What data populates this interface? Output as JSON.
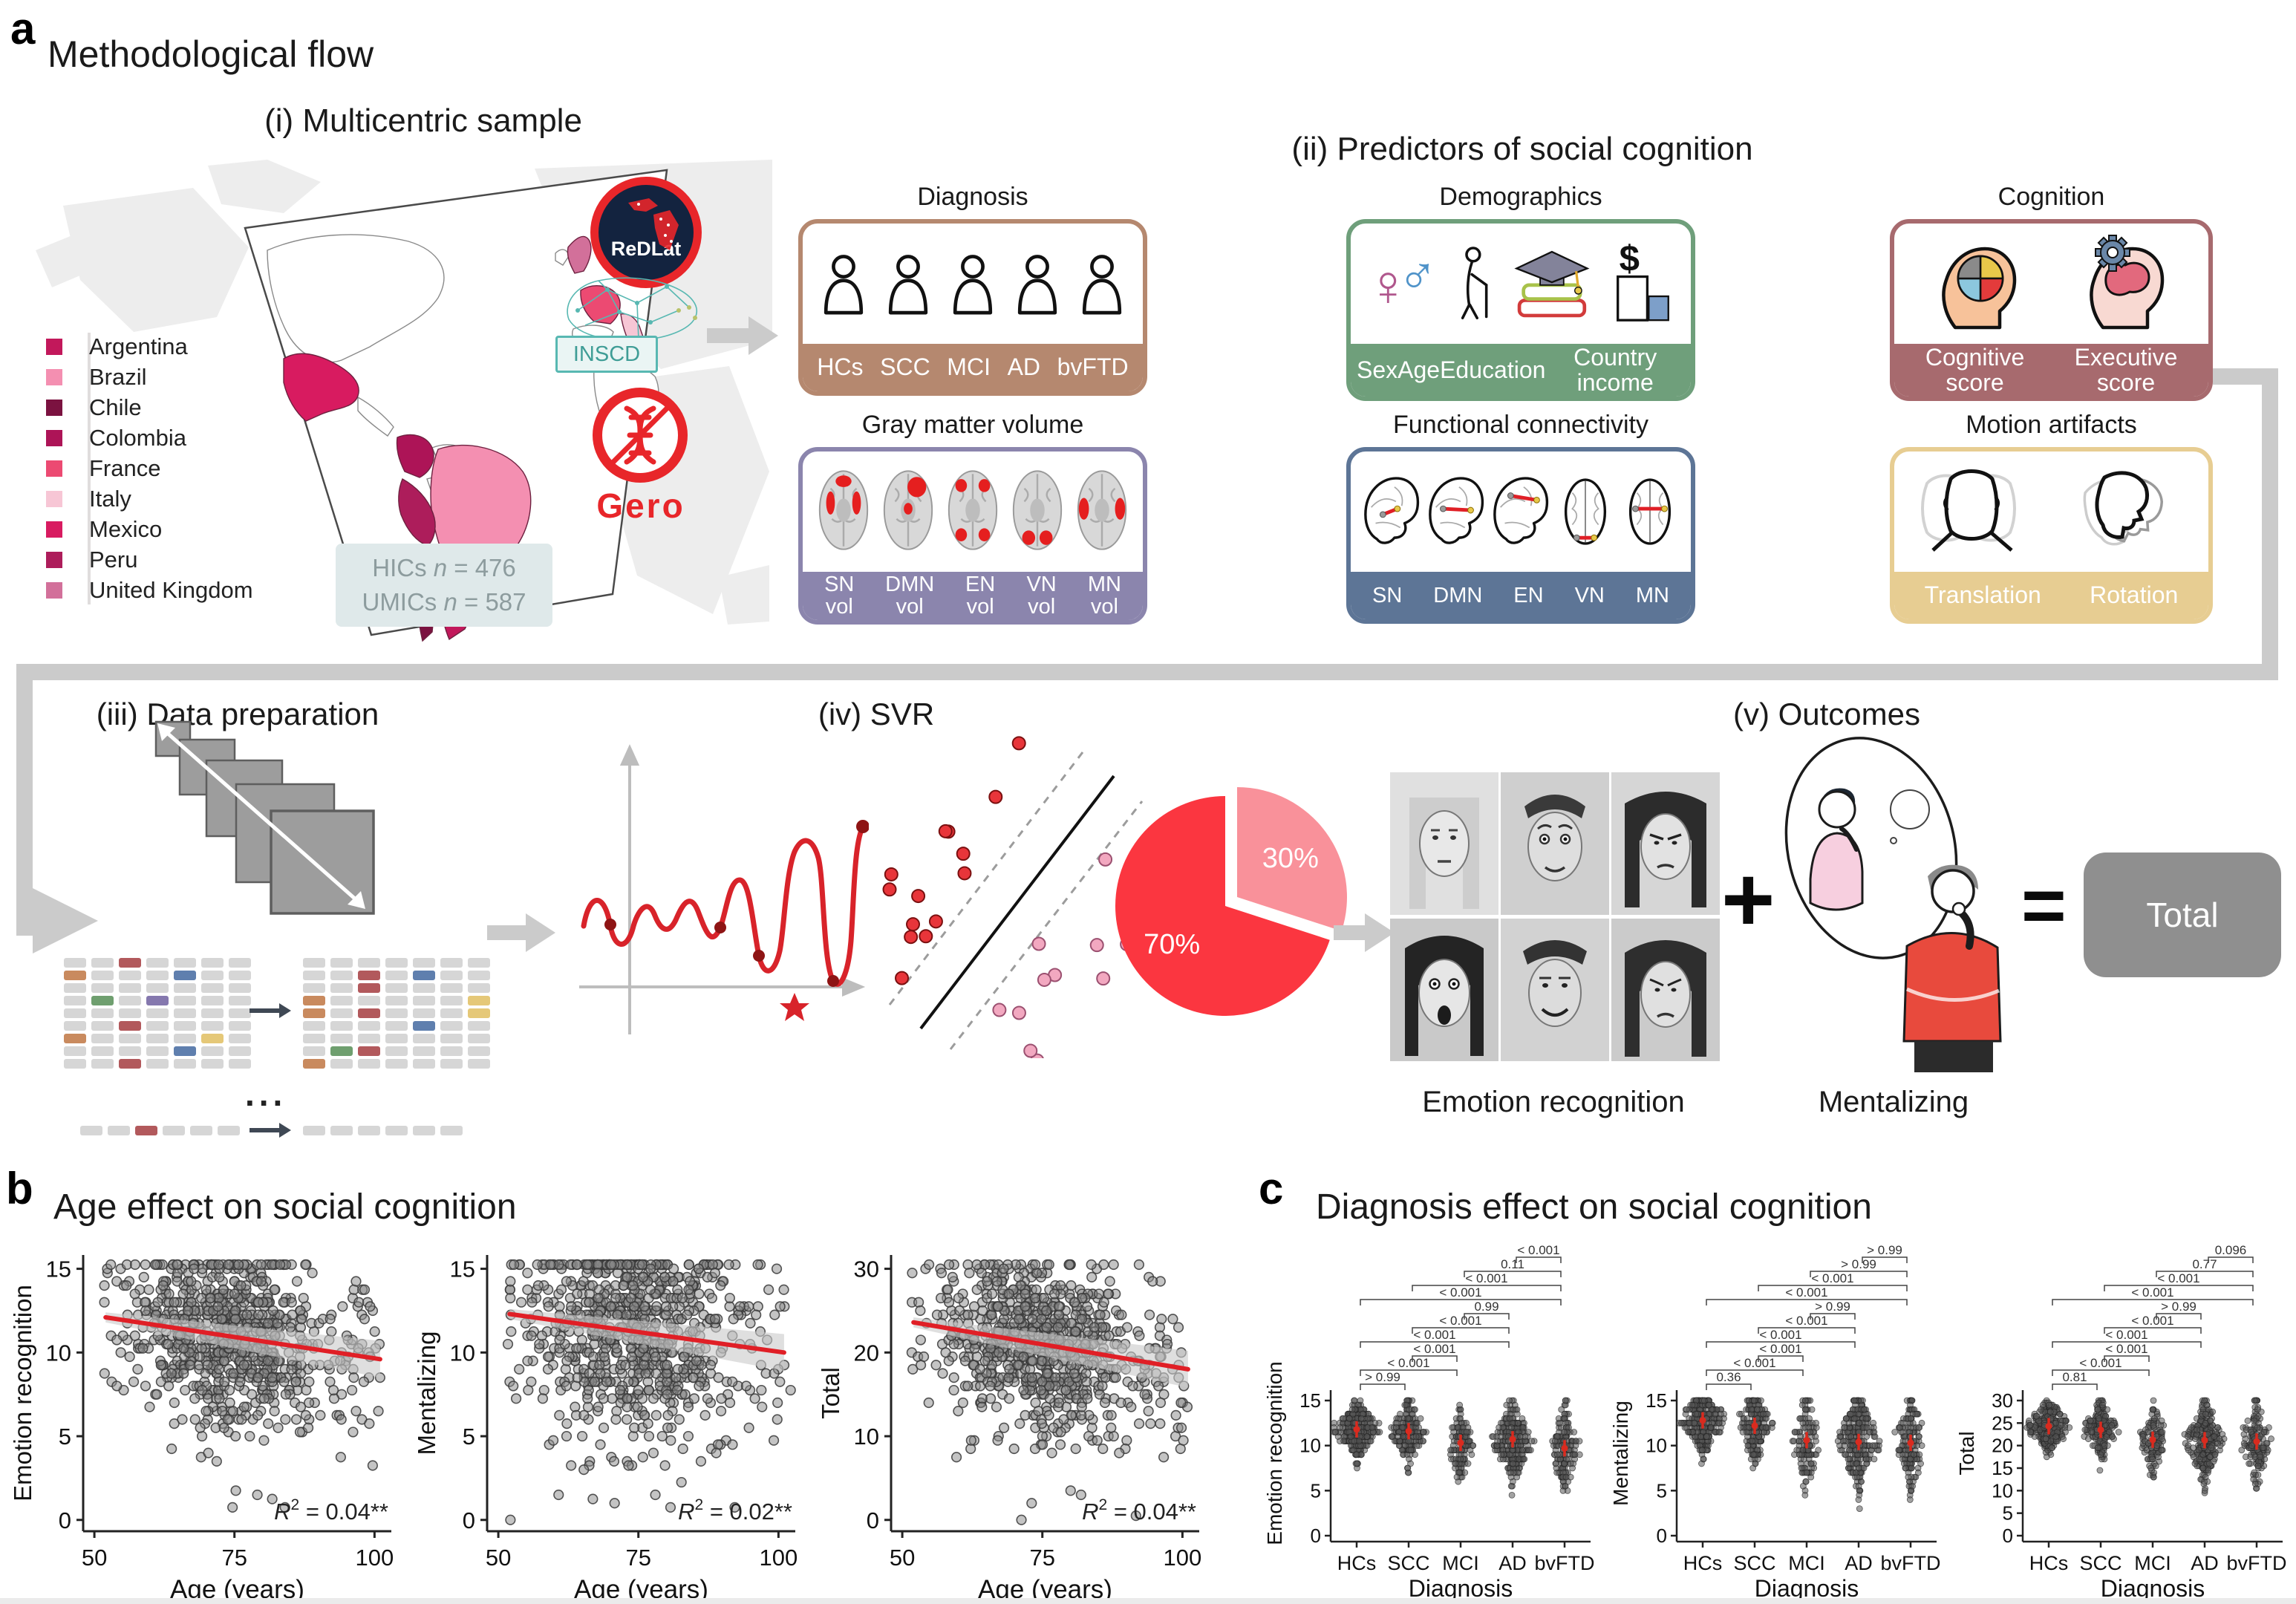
{
  "colors": {
    "flow_gray": "#cbcbcb",
    "accent_red": "#e8262a",
    "pie_main": "#fb3640",
    "pie_light": "#f9919a",
    "trend_red": "#e01f26",
    "mean_red": "#d92b1f",
    "point_gray": "#5c5c5c"
  },
  "panel_a": {
    "label": "a",
    "title": "Methodological flow",
    "section_i": {
      "title": "(i) Multicentric sample",
      "legend": [
        {
          "name": "Argentina",
          "color": "#c2185b"
        },
        {
          "name": "Brazil",
          "color": "#f48fb1"
        },
        {
          "name": "Chile",
          "color": "#7b1240"
        },
        {
          "name": "Colombia",
          "color": "#ad1457"
        },
        {
          "name": "France",
          "color": "#ec4a72"
        },
        {
          "name": "Italy",
          "color": "#f7c6d5"
        },
        {
          "name": "Mexico",
          "color": "#d81b60"
        },
        {
          "name": "Peru",
          "color": "#ad1d5b"
        },
        {
          "name": "United Kingdom",
          "color": "#d2709a"
        }
      ],
      "sample_box": {
        "hics_pre": "HICs ",
        "hics_n": "n",
        "hics_val": " = 476",
        "umics_pre": "UMICs ",
        "umics_n": "n",
        "umics_val": " = 587"
      },
      "logos": {
        "redlat": "ReDLat",
        "inscd": "INSCD",
        "gero": "Gero"
      }
    },
    "section_ii": {
      "title": "(ii) Predictors of social cognition",
      "cards": [
        {
          "title": "Diagnosis",
          "color": "#b5886f",
          "labels": [
            "HCs",
            "SCC",
            "MCI",
            "AD",
            "bvFTD"
          ]
        },
        {
          "title": "Demographics",
          "color": "#6f9f7b",
          "labels": [
            "Sex",
            "Age",
            "Education",
            "Country income"
          ]
        },
        {
          "title": "Cognition",
          "color": "#a76a6e",
          "labels": [
            "Cognitive score",
            "Executive score"
          ]
        },
        {
          "title": "Gray matter volume",
          "color": "#8b85ad",
          "labels": [
            "SN vol",
            "DMN vol",
            "EN vol",
            "VN vol",
            "MN vol"
          ]
        },
        {
          "title": "Functional connectivity",
          "color": "#5d7596",
          "labels": [
            "SN",
            "DMN",
            "EN",
            "VN",
            "MN"
          ]
        },
        {
          "title": "Motion artifacts",
          "color": "#e7cd92",
          "labels": [
            "Translation",
            "Rotation"
          ]
        }
      ]
    },
    "section_iii": {
      "title": "(iii) Data preparation",
      "ellipsis": "...",
      "grid_colors": {
        ".": "#d6d6d6",
        "r": "#b2595c",
        "o": "#c98a5e",
        "b": "#5f7fae",
        "g": "#6f9f6f",
        "p": "#8578ae",
        "y": "#e5c878"
      },
      "grid_left": [
        "..r....",
        "o...b..",
        ".......",
        ".g.p...",
        ".......",
        "..r....",
        "o....y.",
        "....b..",
        "..r...."
      ],
      "grid_right": [
        ".......",
        "..r.b..",
        "..r....",
        "o.....y",
        "o.r...y",
        "....b..",
        ".......",
        ".gr....",
        "o......"
      ],
      "row_left": "..r...",
      "row_right": "......"
    },
    "section_iv": {
      "title": "(iv) SVR",
      "pie": {
        "start_angle": -90,
        "slices": [
          {
            "label": "30%",
            "value": 30,
            "color": "#f9919a",
            "exploded": true
          },
          {
            "label": "70%",
            "value": 70,
            "color": "#fb3640",
            "exploded": false
          }
        ]
      }
    },
    "section_v": {
      "title": "(v) Outcomes",
      "emotion_label": "Emotion recognition",
      "plus": "+",
      "mentalizing_label": "Mentalizing",
      "equals": "=",
      "total_label": "Total"
    }
  },
  "panel_b": {
    "label": "b",
    "title": "Age effect on social cognition",
    "xlabel": "Age (years)",
    "charts": [
      {
        "type": "scatter",
        "ylabel": "Emotion recognition",
        "yticks": [
          0,
          5,
          10,
          15
        ],
        "ymax": 15,
        "xticks": [
          50,
          75,
          100
        ],
        "xlim": [
          48,
          103
        ],
        "r2": {
          "sym": "R",
          "sup": "2",
          "rest": " = 0.04**"
        },
        "trend": {
          "x": [
            52,
            101
          ],
          "y": [
            12.1,
            9.6
          ]
        },
        "n": 800,
        "noise": 2.6,
        "seed": 11
      },
      {
        "type": "scatter",
        "ylabel": "Mentalizing",
        "yticks": [
          0,
          5,
          10,
          15
        ],
        "ymax": 15,
        "xticks": [
          50,
          75,
          100
        ],
        "xlim": [
          48,
          103
        ],
        "r2": {
          "sym": "R",
          "sup": "2",
          "rest": " = 0.02**"
        },
        "trend": {
          "x": [
            52,
            101
          ],
          "y": [
            12.3,
            10.0
          ]
        },
        "n": 800,
        "noise": 3.1,
        "seed": 22
      },
      {
        "type": "scatter",
        "ylabel": "Total",
        "yticks": [
          0,
          10,
          20,
          30
        ],
        "ymax": 30,
        "xticks": [
          50,
          75,
          100
        ],
        "xlim": [
          48,
          103
        ],
        "r2": {
          "sym": "R",
          "sup": "2",
          "rest": " = 0.04**"
        },
        "trend": {
          "x": [
            52,
            101
          ],
          "y": [
            23.6,
            18.0
          ]
        },
        "n": 800,
        "noise": 5.2,
        "seed": 33
      }
    ]
  },
  "panel_c": {
    "label": "c",
    "title": "Diagnosis effect on social cognition",
    "xlabel": "Diagnosis",
    "categories": [
      "HCs",
      "SCC",
      "MCI",
      "AD",
      "bvFTD"
    ],
    "charts": [
      {
        "type": "swarm",
        "ylabel": "Emotion recognition",
        "yticks": [
          0,
          5,
          10,
          15
        ],
        "ymax": 15,
        "means": [
          11.8,
          11.6,
          10.3,
          10.7,
          9.7
        ],
        "sds": [
          1.5,
          1.7,
          1.9,
          2.1,
          2.2
        ],
        "ns": [
          300,
          190,
          120,
          260,
          150
        ],
        "seed": 41,
        "brackets": [
          {
            "a": 0,
            "b": 1,
            "p": "> 0.99"
          },
          {
            "a": 0,
            "b": 2,
            "p": "< 0.001"
          },
          {
            "a": 1,
            "b": 2,
            "p": "< 0.001"
          },
          {
            "a": 0,
            "b": 3,
            "p": "< 0.001"
          },
          {
            "a": 1,
            "b": 3,
            "p": "< 0.001"
          },
          {
            "a": 2,
            "b": 3,
            "p": "0.99"
          },
          {
            "a": 0,
            "b": 4,
            "p": "< 0.001"
          },
          {
            "a": 1,
            "b": 4,
            "p": "< 0.001"
          },
          {
            "a": 2,
            "b": 4,
            "p": "0.11"
          },
          {
            "a": 3,
            "b": 4,
            "p": "< 0.001"
          }
        ]
      },
      {
        "type": "swarm",
        "ylabel": "Mentalizing",
        "yticks": [
          0,
          5,
          10,
          15
        ],
        "ymax": 15,
        "means": [
          12.8,
          12.2,
          10.6,
          10.4,
          10.3
        ],
        "sds": [
          1.7,
          1.9,
          2.4,
          2.6,
          2.7
        ],
        "ns": [
          300,
          190,
          120,
          260,
          150
        ],
        "seed": 52,
        "brackets": [
          {
            "a": 0,
            "b": 1,
            "p": "0.36"
          },
          {
            "a": 0,
            "b": 2,
            "p": "< 0.001"
          },
          {
            "a": 1,
            "b": 2,
            "p": "< 0.001"
          },
          {
            "a": 0,
            "b": 3,
            "p": "< 0.001"
          },
          {
            "a": 1,
            "b": 3,
            "p": "< 0.001"
          },
          {
            "a": 2,
            "b": 3,
            "p": "> 0.99"
          },
          {
            "a": 0,
            "b": 4,
            "p": "< 0.001"
          },
          {
            "a": 1,
            "b": 4,
            "p": "< 0.001"
          },
          {
            "a": 2,
            "b": 4,
            "p": "> 0.99"
          },
          {
            "a": 3,
            "b": 4,
            "p": "> 0.99"
          }
        ]
      },
      {
        "type": "swarm",
        "ylabel": "Total",
        "yticks": [
          0,
          5,
          10,
          15,
          20,
          25,
          30
        ],
        "ymax": 30,
        "means": [
          24.3,
          23.5,
          21.3,
          21.2,
          20.9
        ],
        "sds": [
          2.7,
          3.1,
          3.7,
          4.1,
          4.4
        ],
        "ns": [
          300,
          190,
          120,
          260,
          150
        ],
        "seed": 63,
        "brackets": [
          {
            "a": 0,
            "b": 1,
            "p": "0.81"
          },
          {
            "a": 0,
            "b": 2,
            "p": "< 0.001"
          },
          {
            "a": 1,
            "b": 2,
            "p": "< 0.001"
          },
          {
            "a": 0,
            "b": 3,
            "p": "< 0.001"
          },
          {
            "a": 1,
            "b": 3,
            "p": "< 0.001"
          },
          {
            "a": 2,
            "b": 3,
            "p": "> 0.99"
          },
          {
            "a": 0,
            "b": 4,
            "p": "< 0.001"
          },
          {
            "a": 1,
            "b": 4,
            "p": "< 0.001"
          },
          {
            "a": 2,
            "b": 4,
            "p": "0.77"
          },
          {
            "a": 3,
            "b": 4,
            "p": "0.096"
          }
        ]
      }
    ]
  }
}
